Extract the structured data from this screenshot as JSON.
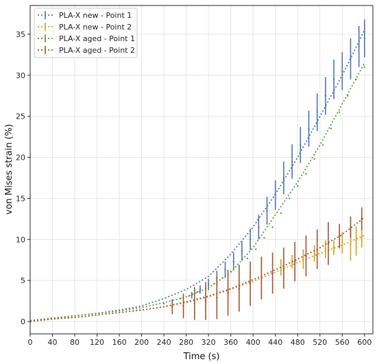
{
  "chart_data": {
    "type": "line",
    "xlabel": "Time (s)",
    "ylabel": "von Mises strain (%)",
    "xlim": [
      0,
      615
    ],
    "ylim": [
      -1.5,
      38.5
    ],
    "xticks": [
      0,
      40,
      80,
      120,
      160,
      200,
      240,
      280,
      320,
      360,
      400,
      440,
      480,
      520,
      560,
      600
    ],
    "yticks": [
      0,
      5,
      10,
      15,
      20,
      25,
      30,
      35
    ],
    "grid": true,
    "legend_position": "top-left",
    "series": [
      {
        "name": "PLA-X new - Point 1",
        "color": "#4c72b0",
        "fit_x": [
          0,
          40,
          80,
          120,
          160,
          200,
          240,
          280,
          320,
          360,
          400,
          440,
          480,
          520,
          560,
          600
        ],
        "fit_y": [
          0.1,
          0.4,
          0.7,
          1.0,
          1.4,
          1.9,
          2.8,
          3.9,
          5.5,
          8.2,
          11.5,
          15.5,
          20.0,
          25.0,
          30.0,
          35.5
        ],
        "x": [
          290,
          305,
          320,
          335,
          350,
          365,
          380,
          395,
          410,
          425,
          440,
          455,
          470,
          485,
          500,
          515,
          530,
          545,
          560,
          575,
          590,
          600
        ],
        "y": [
          3.2,
          3.9,
          4.5,
          5.3,
          6.3,
          7.3,
          8.6,
          10.0,
          11.5,
          13.5,
          15.4,
          17.5,
          19.5,
          21.5,
          23.5,
          25.5,
          27.5,
          29.5,
          30.5,
          32.0,
          33.5,
          34.5
        ],
        "err": [
          0.4,
          0.5,
          0.7,
          0.9,
          1.0,
          1.1,
          1.2,
          1.3,
          1.5,
          1.7,
          1.8,
          2.0,
          2.1,
          2.2,
          2.2,
          2.3,
          2.3,
          2.4,
          2.3,
          2.5,
          2.5,
          2.3
        ]
      },
      {
        "name": "PLA-X new - Point 2",
        "color": "#d4a017",
        "fit_x": [
          0,
          40,
          80,
          120,
          160,
          200,
          240,
          280,
          320,
          360,
          400,
          440,
          480,
          520,
          560,
          600
        ],
        "fit_y": [
          0.0,
          0.3,
          0.5,
          0.8,
          1.1,
          1.4,
          1.8,
          2.3,
          3.0,
          3.9,
          4.9,
          6.0,
          7.2,
          8.3,
          9.3,
          10.5
        ],
        "x": [
          450,
          470,
          490,
          510,
          530,
          545,
          560,
          575,
          585,
          595
        ],
        "y": [
          6.6,
          7.3,
          7.6,
          8.3,
          8.8,
          9.0,
          9.6,
          9.4,
          9.8,
          10.2
        ],
        "err": [
          1.0,
          0.8,
          1.2,
          1.0,
          1.1,
          0.9,
          1.3,
          2.0,
          1.8,
          1.2
        ]
      },
      {
        "name": "PLA-X aged - Point 1",
        "color": "#4f9e36",
        "fit_x": [
          0,
          40,
          80,
          120,
          160,
          200,
          240,
          280,
          320,
          360,
          400,
          440,
          480,
          520,
          560,
          600
        ],
        "fit_y": [
          0.1,
          0.4,
          0.7,
          1.0,
          1.3,
          1.7,
          2.3,
          3.0,
          4.1,
          6.0,
          9.0,
          13.0,
          17.0,
          21.5,
          26.5,
          31.5
        ],
        "x": [
          240,
          255,
          270,
          285,
          300,
          315,
          330,
          345,
          360,
          375,
          390,
          405,
          420,
          435,
          450,
          465,
          480,
          495,
          510,
          525,
          540,
          555,
          570,
          585,
          600
        ],
        "y": [
          2.2,
          2.6,
          2.8,
          3.1,
          3.6,
          4.0,
          4.6,
          5.3,
          6.1,
          6.8,
          7.7,
          8.8,
          10.2,
          11.5,
          13.2,
          15.0,
          16.5,
          18.0,
          19.8,
          21.5,
          23.5,
          25.5,
          27.5,
          29.5,
          31.0
        ]
      },
      {
        "name": "PLA-X aged - Point 2",
        "color": "#a0522d",
        "fit_x": [
          0,
          40,
          80,
          120,
          160,
          200,
          240,
          280,
          320,
          360,
          400,
          440,
          480,
          520,
          560,
          600
        ],
        "fit_y": [
          0.0,
          0.3,
          0.5,
          0.8,
          1.1,
          1.4,
          1.8,
          2.4,
          3.1,
          4.0,
          5.1,
          6.3,
          7.6,
          9.0,
          10.6,
          12.7
        ],
        "x": [
          255,
          275,
          295,
          315,
          335,
          355,
          375,
          395,
          415,
          435,
          455,
          475,
          495,
          515,
          535,
          555,
          575,
          595
        ],
        "y": [
          1.8,
          1.9,
          2.2,
          2.5,
          2.9,
          3.5,
          4.0,
          4.6,
          5.3,
          5.9,
          6.5,
          7.3,
          8.0,
          8.8,
          9.5,
          10.4,
          11.5,
          12.5
        ],
        "err": [
          0.9,
          1.5,
          2.0,
          2.3,
          2.6,
          2.8,
          2.8,
          2.7,
          2.6,
          2.5,
          2.5,
          2.4,
          2.5,
          2.4,
          2.6,
          1.5,
          1.3,
          1.4
        ]
      }
    ]
  }
}
